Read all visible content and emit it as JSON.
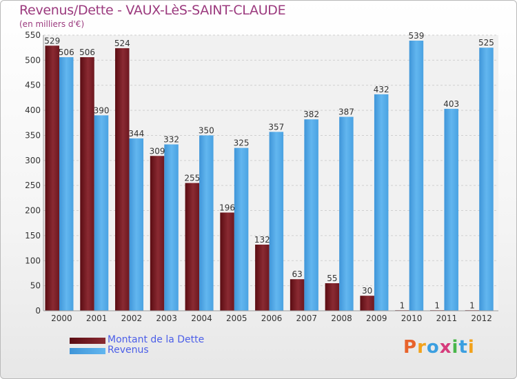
{
  "title": "Revenus/Dette - VAUX-LèS-SAINT-CLAUDE",
  "subtitle": "(en milliers d'€)",
  "logo": "Proxiti",
  "colors": {
    "dette": "#7a1a22",
    "revenus": "#4da6e6",
    "title": "#9b3a7e",
    "legend_text": "#4b5ee8"
  },
  "chart_data": {
    "type": "bar",
    "title": "Revenus/Dette - VAUX-LèS-SAINT-CLAUDE",
    "ylabel": "(en milliers d'€)",
    "xlabel": "",
    "categories": [
      "2000",
      "2001",
      "2002",
      "2003",
      "2004",
      "2005",
      "2006",
      "2007",
      "2008",
      "2009",
      "2010",
      "2011",
      "2012"
    ],
    "ylim": [
      0,
      550
    ],
    "yticks": [
      0,
      50,
      100,
      150,
      200,
      250,
      300,
      350,
      400,
      450,
      500,
      550
    ],
    "grid": true,
    "legend_position": "bottom-left",
    "series": [
      {
        "name": "Montant de la Dette",
        "values": [
          529,
          506,
          524,
          309,
          255,
          196,
          132,
          63,
          55,
          30,
          1,
          1,
          1
        ]
      },
      {
        "name": "Revenus",
        "values": [
          506,
          390,
          344,
          332,
          350,
          325,
          357,
          382,
          387,
          432,
          539,
          403,
          525
        ]
      }
    ]
  }
}
